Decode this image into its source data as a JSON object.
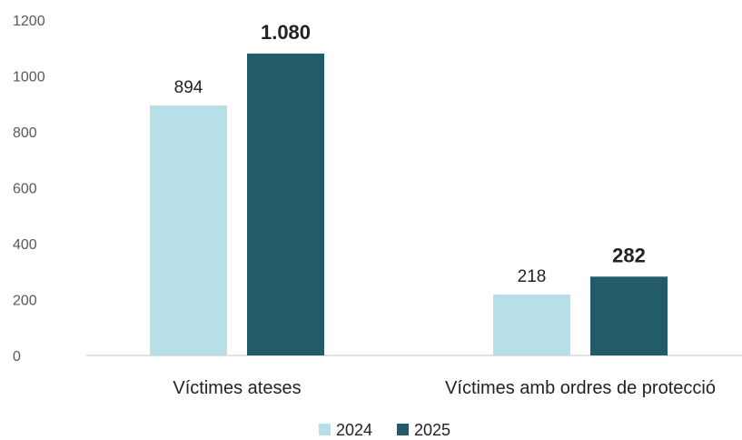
{
  "chart_data": {
    "type": "bar",
    "categories": [
      "Víctimes ateses",
      "Víctimes amb ordres de protecció"
    ],
    "series": [
      {
        "name": "2024",
        "values": [
          894,
          218
        ],
        "labels": [
          "894",
          "218"
        ],
        "color": "#b7dfe8"
      },
      {
        "name": "2025",
        "values": [
          1080,
          282
        ],
        "labels": [
          "1.080",
          "282"
        ],
        "color": "#235b68"
      }
    ],
    "ylim": [
      0,
      1200
    ],
    "yticks": [
      "0",
      "200",
      "400",
      "600",
      "800",
      "1000",
      "1200"
    ],
    "grid": false,
    "legend_position": "bottom",
    "label_colors": {
      "2024": "#222222",
      "2025": "#2a6576"
    }
  }
}
